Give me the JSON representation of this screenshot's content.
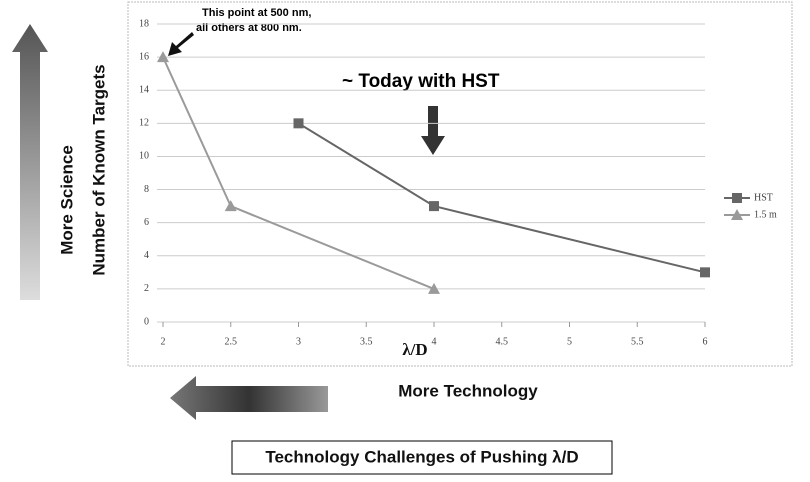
{
  "chart_data": {
    "type": "line",
    "x_label": "λ/D",
    "y_label": "Number of Known Targets",
    "series": [
      {
        "name": "HST",
        "color": "#666666",
        "marker": "square",
        "x": [
          3,
          4,
          6
        ],
        "values": [
          12,
          7,
          3
        ]
      },
      {
        "name": "1.5 m",
        "color": "#9a9a9a",
        "marker": "triangle",
        "x": [
          2,
          2.5,
          4
        ],
        "values": [
          16,
          7,
          2
        ]
      }
    ],
    "xlim": [
      2,
      6
    ],
    "xticks": [
      2,
      2.5,
      3,
      3.5,
      4,
      4.5,
      5,
      5.5,
      6
    ],
    "ylim": [
      0,
      18
    ],
    "yticks": [
      0,
      2,
      4,
      6,
      8,
      10,
      12,
      14,
      16,
      18
    ],
    "grid": true,
    "legend": "right",
    "annotations": [
      "This point at 500 nm,",
      "all others at 800 nm.",
      "~ Today with HST"
    ],
    "side_labels": [
      "More Science",
      "More Technology"
    ],
    "caption": "Technology Challenges of Pushing λ/D"
  }
}
